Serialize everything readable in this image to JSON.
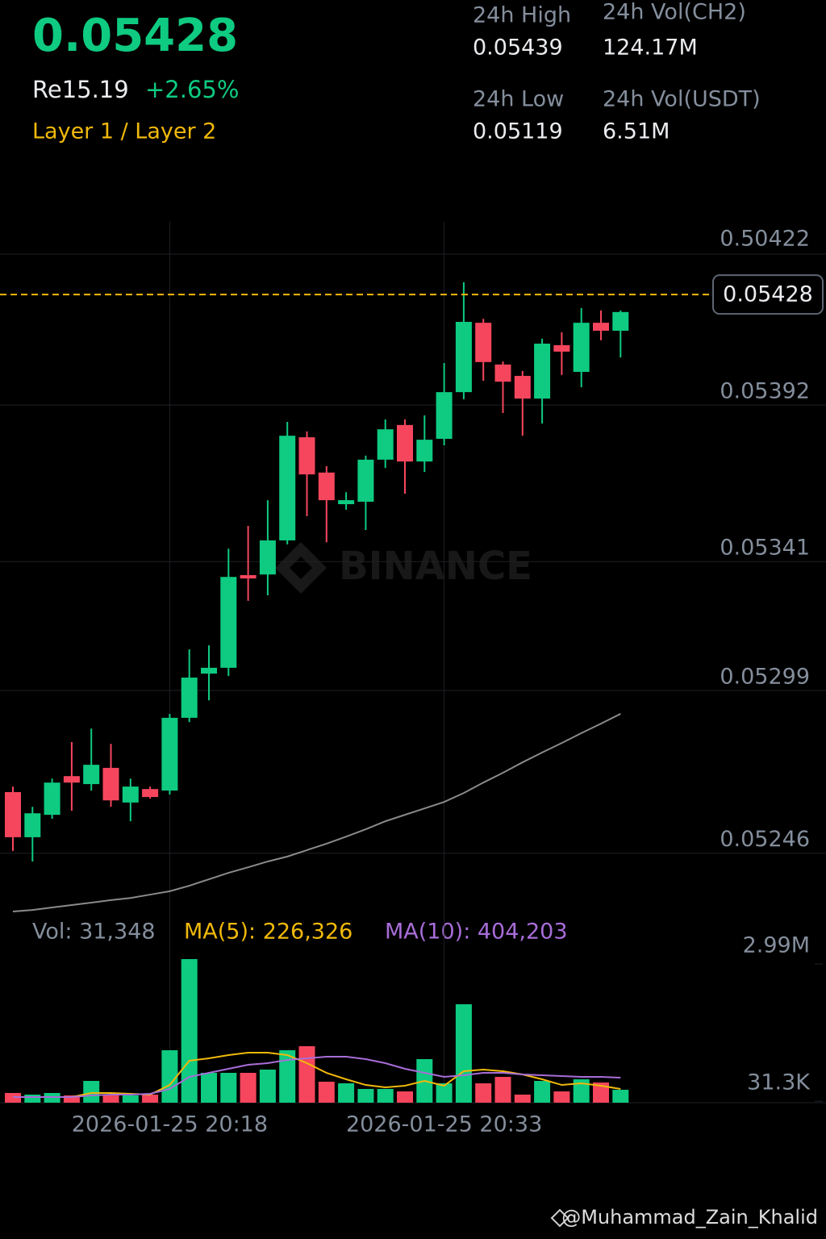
{
  "header": {
    "price": "0.05428",
    "fiat": "Re15.19",
    "change": "+2.65%",
    "tag": "Layer 1 / Layer 2"
  },
  "stats": [
    {
      "label": "24h High",
      "value": "0.05439"
    },
    {
      "label": "24h Vol(CH2)",
      "value": "124.17M"
    },
    {
      "label": "24h Low",
      "value": "0.05119"
    },
    {
      "label": "24h Vol(USDT)",
      "value": "6.51M"
    }
  ],
  "watermark": "BINANCE",
  "footer": "@Muhammad_Zain_Khalid",
  "chart_data": [
    {
      "type": "candlestick",
      "categories": [
        null,
        null,
        null,
        null,
        null,
        null,
        null,
        null,
        "2026-01-25 20:18",
        null,
        null,
        null,
        null,
        null,
        null,
        null,
        null,
        null,
        null,
        null,
        null,
        null,
        "2026-01-25 20:33",
        null,
        null,
        null,
        null,
        null,
        null,
        null,
        null,
        null
      ],
      "open": [
        0.052659,
        0.052512,
        0.052585,
        0.052711,
        0.052685,
        0.052738,
        0.052625,
        0.052669,
        0.052664,
        0.052901,
        0.053045,
        0.053064,
        0.053366,
        0.053368,
        0.053479,
        0.053815,
        0.0537,
        0.053597,
        0.053605,
        0.053742,
        0.053855,
        0.053736,
        0.05381,
        0.053962,
        0.054188,
        0.054052,
        0.054015,
        0.053941,
        0.054115,
        0.054028,
        0.054188,
        0.054162
      ],
      "high": [
        0.052677,
        0.052611,
        0.052703,
        0.052822,
        0.052866,
        0.052816,
        0.052703,
        0.052677,
        0.052914,
        0.053124,
        0.053137,
        0.053452,
        0.053526,
        0.05361,
        0.053865,
        0.053834,
        0.053721,
        0.053636,
        0.053755,
        0.053873,
        0.053873,
        0.053886,
        0.054057,
        0.05432,
        0.054201,
        0.054062,
        0.054031,
        0.054136,
        0.054157,
        0.054236,
        0.054228,
        0.054228
      ],
      "low": [
        0.052467,
        0.052433,
        0.052572,
        0.052598,
        0.052664,
        0.052611,
        0.052564,
        0.052638,
        0.052651,
        0.052887,
        0.052958,
        0.053037,
        0.053282,
        0.0533,
        0.053466,
        0.053558,
        0.053473,
        0.053579,
        0.053513,
        0.053715,
        0.053631,
        0.053702,
        0.053789,
        0.053939,
        0.053999,
        0.053894,
        0.05382,
        0.05386,
        0.054018,
        0.053978,
        0.054131,
        0.054075
      ],
      "close": [
        0.052512,
        0.05259,
        0.05269,
        0.05269,
        0.052748,
        0.052632,
        0.052677,
        0.052643,
        0.052901,
        0.053032,
        0.053064,
        0.05336,
        0.053355,
        0.053479,
        0.05382,
        0.053694,
        0.05361,
        0.05361,
        0.053742,
        0.053841,
        0.053736,
        0.053807,
        0.053962,
        0.054191,
        0.05406,
        0.053996,
        0.053941,
        0.05412,
        0.054094,
        0.054188,
        0.054162,
        0.054223
      ],
      "up_color": "#0ecb81",
      "down_color": "#f6465d",
      "ma_line": {
        "color": "#8a8a8a",
        "values": [
          0.05227,
          0.052275,
          0.052283,
          0.052291,
          0.052299,
          0.052307,
          0.052314,
          0.052325,
          0.052336,
          0.052354,
          0.052375,
          0.052396,
          0.052414,
          0.052433,
          0.052449,
          0.05247,
          0.052491,
          0.052514,
          0.052538,
          0.052564,
          0.052585,
          0.052606,
          0.052627,
          0.052656,
          0.05269,
          0.052722,
          0.052756,
          0.052788,
          0.052819,
          0.052851,
          0.052882,
          0.052914
        ]
      },
      "current_price": 0.05428,
      "current_price_color": "#f0b90b",
      "axis_top_label": "0.50422",
      "ylim": [
        0.05227,
        0.05453
      ],
      "yticks": [
        0.05392,
        0.05341,
        0.05299,
        0.05246
      ],
      "grid": true
    },
    {
      "type": "bar",
      "vol_label": "Vol: 31,348",
      "values": [
        209000,
        174000,
        209000,
        156000,
        469000,
        156000,
        156000,
        174000,
        1130000,
        3095000,
        643000,
        643000,
        643000,
        713000,
        1130000,
        1217000,
        452000,
        417000,
        296000,
        296000,
        243000,
        939000,
        417000,
        2121000,
        417000,
        556000,
        174000,
        469000,
        243000,
        504000,
        435000,
        278000
      ],
      "series": [
        {
          "name": "MA(5): 226,326",
          "color": "#f0b90b",
          "values": [
            122000,
            122000,
            122000,
            122000,
            209000,
            209000,
            191000,
            174000,
            382000,
            904000,
            956000,
            1026000,
            1078000,
            1078000,
            1026000,
            852000,
            643000,
            504000,
            382000,
            330000,
            365000,
            469000,
            365000,
            678000,
            713000,
            678000,
            608000,
            504000,
            382000,
            417000,
            365000,
            296000
          ]
        },
        {
          "name": "MA(10): 404,203",
          "color": "#a86dd8",
          "values": [
            122000,
            122000,
            122000,
            122000,
            156000,
            174000,
            174000,
            191000,
            296000,
            556000,
            643000,
            730000,
            817000,
            852000,
            921000,
            956000,
            991000,
            991000,
            939000,
            852000,
            730000,
            643000,
            556000,
            591000,
            643000,
            643000,
            608000,
            591000,
            574000,
            556000,
            556000,
            539000
          ]
        }
      ],
      "ylim": [
        0,
        3164000
      ],
      "yticks": [
        {
          "value": 2990000,
          "label": "2.99M"
        },
        {
          "value": 31300,
          "label": "31.3K"
        }
      ]
    }
  ]
}
